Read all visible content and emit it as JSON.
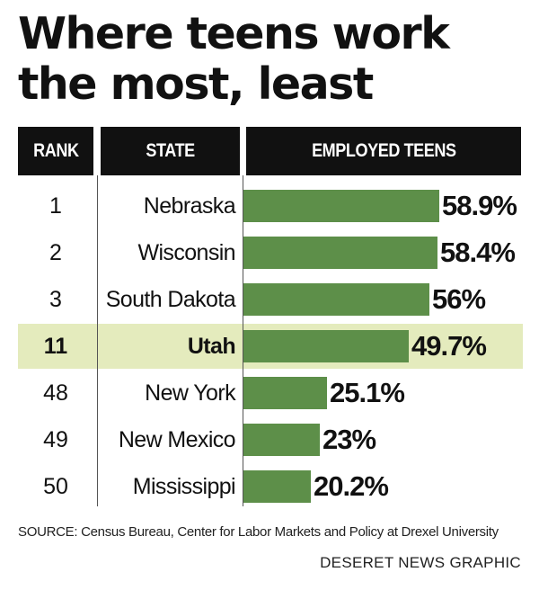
{
  "title_line1": "Where teens work",
  "title_line2": "the most, least",
  "columns": {
    "rank": "RANK",
    "state": "STATE",
    "employed": "EMPLOYED TEENS"
  },
  "chart_data": {
    "type": "bar",
    "title": "Where teens work the most, least",
    "orientation": "horizontal",
    "columns": [
      "RANK",
      "STATE",
      "EMPLOYED TEENS"
    ],
    "rows": [
      {
        "rank": "1",
        "state": "Nebraska",
        "value": 58.9,
        "label": "58.9%",
        "highlight": false
      },
      {
        "rank": "2",
        "state": "Wisconsin",
        "value": 58.4,
        "label": "58.4%",
        "highlight": false
      },
      {
        "rank": "3",
        "state": "South Dakota",
        "value": 56,
        "label": "56%",
        "highlight": false
      },
      {
        "rank": "11",
        "state": "Utah",
        "value": 49.7,
        "label": "49.7%",
        "highlight": true
      },
      {
        "rank": "48",
        "state": "New York",
        "value": 25.1,
        "label": "25.1%",
        "highlight": false
      },
      {
        "rank": "49",
        "state": "New Mexico",
        "value": 23,
        "label": "23%",
        "highlight": false
      },
      {
        "rank": "50",
        "state": "Mississippi",
        "value": 20.2,
        "label": "20.2%",
        "highlight": false
      }
    ],
    "bar_color": "#5d8f49",
    "highlight_color": "#e4ebbd"
  },
  "source": "SOURCE: Census Bureau, Center for Labor Markets and Policy at Drexel University",
  "credit": "DESERET NEWS GRAPHIC"
}
